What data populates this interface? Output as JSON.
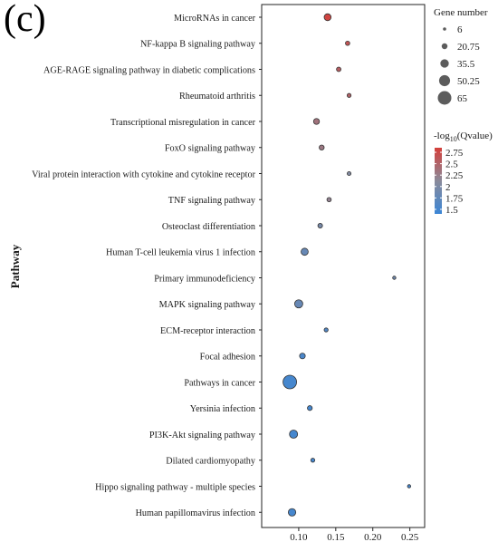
{
  "panel_label": "(c)",
  "chart_data": {
    "type": "scatter",
    "title": "",
    "ylabel": "Pathway",
    "xlabel": "",
    "xlim": [
      0.05,
      0.27
    ],
    "xticks": [
      0.1,
      0.15,
      0.2,
      0.25
    ],
    "xtick_labels": [
      "0.10",
      "0.15",
      "0.20",
      "0.25"
    ],
    "grid": false,
    "size_legend": {
      "title": "Gene number",
      "values": [
        6,
        20.75,
        35.5,
        50.25,
        65
      ],
      "labels": [
        "6",
        "20.75",
        "35.5",
        "50.25",
        "65"
      ]
    },
    "color_legend": {
      "title_main": "-log",
      "title_sub": "10",
      "title_tail": "(Qvalue)",
      "ticks": [
        2.75,
        2.5,
        2.25,
        2,
        1.75,
        1.5
      ],
      "tick_labels": [
        "2.75",
        "2.5",
        "2.25",
        "2",
        "1.75",
        "1.5"
      ],
      "range": [
        1.4,
        2.85
      ],
      "low_color": "#3b86d6",
      "mid_color": "#8a8a9a",
      "high_color": "#d43f3a"
    },
    "points": [
      {
        "pathway": "MicroRNAs in cancer",
        "x": 0.139,
        "gene_number": 27,
        "neg_log10_q": 2.8
      },
      {
        "pathway": "NF-kappa B signaling pathway",
        "x": 0.166,
        "gene_number": 12,
        "neg_log10_q": 2.65
      },
      {
        "pathway": "AGE-RAGE signaling pathway in diabetic complications",
        "x": 0.154,
        "gene_number": 13,
        "neg_log10_q": 2.55
      },
      {
        "pathway": "Rheumatoid arthritis",
        "x": 0.168,
        "gene_number": 10,
        "neg_log10_q": 2.5
      },
      {
        "pathway": "Transcriptional misregulation in cancer",
        "x": 0.124,
        "gene_number": 21,
        "neg_log10_q": 2.35
      },
      {
        "pathway": "FoxO signaling pathway",
        "x": 0.131,
        "gene_number": 16,
        "neg_log10_q": 2.3
      },
      {
        "pathway": "Viral protein interaction with cytokine and cytokine receptor",
        "x": 0.168,
        "gene_number": 9,
        "neg_log10_q": 2.05
      },
      {
        "pathway": "TNF signaling pathway",
        "x": 0.141,
        "gene_number": 12,
        "neg_log10_q": 2.2
      },
      {
        "pathway": "Osteoclast differentiation",
        "x": 0.129,
        "gene_number": 14,
        "neg_log10_q": 1.95
      },
      {
        "pathway": "Human T-cell leukemia virus 1 infection",
        "x": 0.108,
        "gene_number": 28,
        "neg_log10_q": 1.8
      },
      {
        "pathway": "Primary immunodeficiency",
        "x": 0.229,
        "gene_number": 6,
        "neg_log10_q": 1.9
      },
      {
        "pathway": "MAPK signaling pathway",
        "x": 0.1,
        "gene_number": 34,
        "neg_log10_q": 1.8
      },
      {
        "pathway": "ECM-receptor interaction",
        "x": 0.137,
        "gene_number": 10,
        "neg_log10_q": 1.6
      },
      {
        "pathway": "Focal adhesion",
        "x": 0.105,
        "gene_number": 20,
        "neg_log10_q": 1.55
      },
      {
        "pathway": "Pathways in cancer",
        "x": 0.088,
        "gene_number": 65,
        "neg_log10_q": 1.5
      },
      {
        "pathway": "Yersinia infection",
        "x": 0.115,
        "gene_number": 15,
        "neg_log10_q": 1.5
      },
      {
        "pathway": "PI3K-Akt signaling pathway",
        "x": 0.093,
        "gene_number": 34,
        "neg_log10_q": 1.5
      },
      {
        "pathway": "Dilated cardiomyopathy",
        "x": 0.119,
        "gene_number": 10,
        "neg_log10_q": 1.5
      },
      {
        "pathway": "Hippo signaling pathway - multiple species",
        "x": 0.249,
        "gene_number": 6,
        "neg_log10_q": 1.5
      },
      {
        "pathway": "Human papillomavirus infection",
        "x": 0.091,
        "gene_number": 30,
        "neg_log10_q": 1.5
      }
    ]
  }
}
